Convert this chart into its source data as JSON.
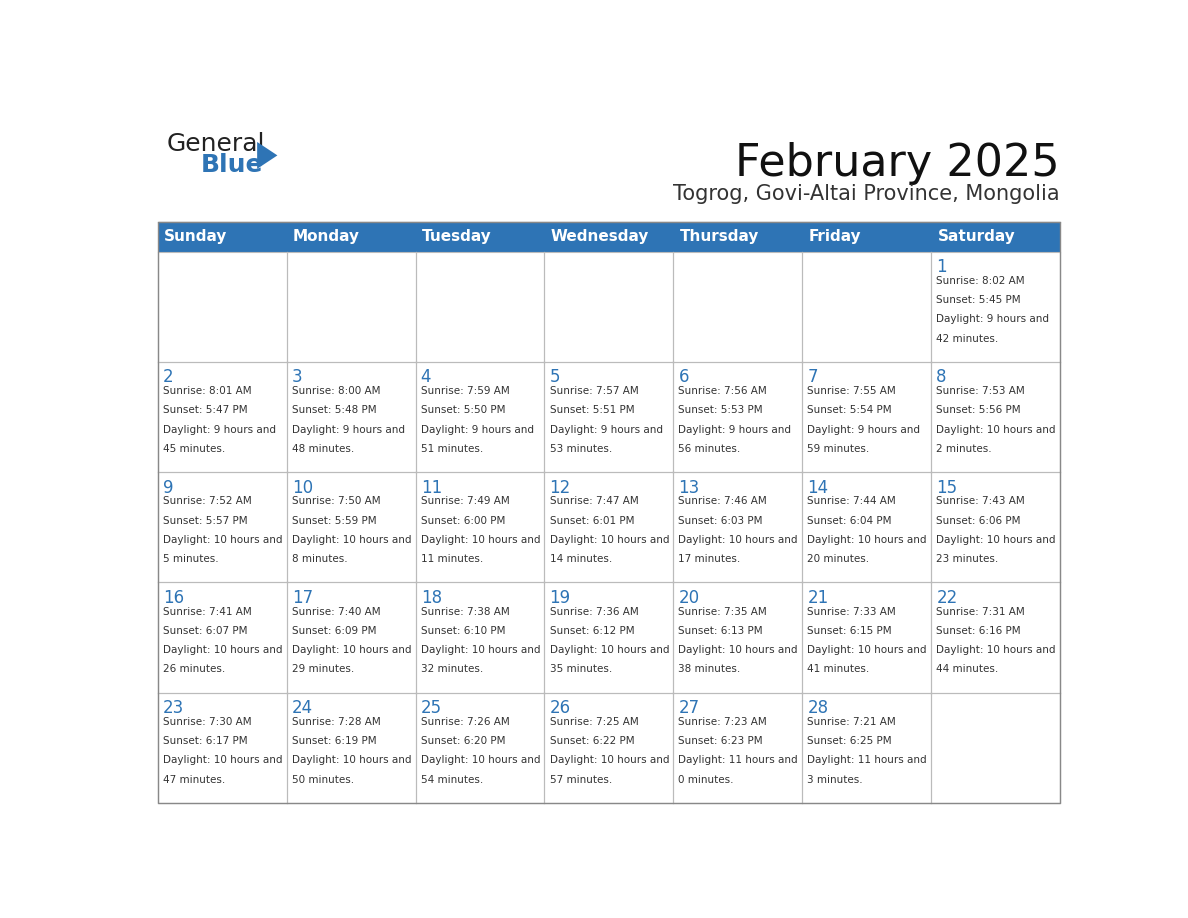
{
  "title": "February 2025",
  "subtitle": "Togrog, Govi-Altai Province, Mongolia",
  "header_bg": "#2E74B5",
  "header_text": "#FFFFFF",
  "cell_bg": "#FFFFFF",
  "cell_border": "#CCCCCC",
  "day_num_color": "#2E74B5",
  "cell_text_color": "#333333",
  "days_of_week": [
    "Sunday",
    "Monday",
    "Tuesday",
    "Wednesday",
    "Thursday",
    "Friday",
    "Saturday"
  ],
  "calendar": [
    [
      null,
      null,
      null,
      null,
      null,
      null,
      {
        "day": 1,
        "sunrise": "8:02 AM",
        "sunset": "5:45 PM",
        "daylight": "9 hours and 42 minutes."
      }
    ],
    [
      {
        "day": 2,
        "sunrise": "8:01 AM",
        "sunset": "5:47 PM",
        "daylight": "9 hours and 45 minutes."
      },
      {
        "day": 3,
        "sunrise": "8:00 AM",
        "sunset": "5:48 PM",
        "daylight": "9 hours and 48 minutes."
      },
      {
        "day": 4,
        "sunrise": "7:59 AM",
        "sunset": "5:50 PM",
        "daylight": "9 hours and 51 minutes."
      },
      {
        "day": 5,
        "sunrise": "7:57 AM",
        "sunset": "5:51 PM",
        "daylight": "9 hours and 53 minutes."
      },
      {
        "day": 6,
        "sunrise": "7:56 AM",
        "sunset": "5:53 PM",
        "daylight": "9 hours and 56 minutes."
      },
      {
        "day": 7,
        "sunrise": "7:55 AM",
        "sunset": "5:54 PM",
        "daylight": "9 hours and 59 minutes."
      },
      {
        "day": 8,
        "sunrise": "7:53 AM",
        "sunset": "5:56 PM",
        "daylight": "10 hours and 2 minutes."
      }
    ],
    [
      {
        "day": 9,
        "sunrise": "7:52 AM",
        "sunset": "5:57 PM",
        "daylight": "10 hours and 5 minutes."
      },
      {
        "day": 10,
        "sunrise": "7:50 AM",
        "sunset": "5:59 PM",
        "daylight": "10 hours and 8 minutes."
      },
      {
        "day": 11,
        "sunrise": "7:49 AM",
        "sunset": "6:00 PM",
        "daylight": "10 hours and 11 minutes."
      },
      {
        "day": 12,
        "sunrise": "7:47 AM",
        "sunset": "6:01 PM",
        "daylight": "10 hours and 14 minutes."
      },
      {
        "day": 13,
        "sunrise": "7:46 AM",
        "sunset": "6:03 PM",
        "daylight": "10 hours and 17 minutes."
      },
      {
        "day": 14,
        "sunrise": "7:44 AM",
        "sunset": "6:04 PM",
        "daylight": "10 hours and 20 minutes."
      },
      {
        "day": 15,
        "sunrise": "7:43 AM",
        "sunset": "6:06 PM",
        "daylight": "10 hours and 23 minutes."
      }
    ],
    [
      {
        "day": 16,
        "sunrise": "7:41 AM",
        "sunset": "6:07 PM",
        "daylight": "10 hours and 26 minutes."
      },
      {
        "day": 17,
        "sunrise": "7:40 AM",
        "sunset": "6:09 PM",
        "daylight": "10 hours and 29 minutes."
      },
      {
        "day": 18,
        "sunrise": "7:38 AM",
        "sunset": "6:10 PM",
        "daylight": "10 hours and 32 minutes."
      },
      {
        "day": 19,
        "sunrise": "7:36 AM",
        "sunset": "6:12 PM",
        "daylight": "10 hours and 35 minutes."
      },
      {
        "day": 20,
        "sunrise": "7:35 AM",
        "sunset": "6:13 PM",
        "daylight": "10 hours and 38 minutes."
      },
      {
        "day": 21,
        "sunrise": "7:33 AM",
        "sunset": "6:15 PM",
        "daylight": "10 hours and 41 minutes."
      },
      {
        "day": 22,
        "sunrise": "7:31 AM",
        "sunset": "6:16 PM",
        "daylight": "10 hours and 44 minutes."
      }
    ],
    [
      {
        "day": 23,
        "sunrise": "7:30 AM",
        "sunset": "6:17 PM",
        "daylight": "10 hours and 47 minutes."
      },
      {
        "day": 24,
        "sunrise": "7:28 AM",
        "sunset": "6:19 PM",
        "daylight": "10 hours and 50 minutes."
      },
      {
        "day": 25,
        "sunrise": "7:26 AM",
        "sunset": "6:20 PM",
        "daylight": "10 hours and 54 minutes."
      },
      {
        "day": 26,
        "sunrise": "7:25 AM",
        "sunset": "6:22 PM",
        "daylight": "10 hours and 57 minutes."
      },
      {
        "day": 27,
        "sunrise": "7:23 AM",
        "sunset": "6:23 PM",
        "daylight": "11 hours and 0 minutes."
      },
      {
        "day": 28,
        "sunrise": "7:21 AM",
        "sunset": "6:25 PM",
        "daylight": "11 hours and 3 minutes."
      },
      null
    ]
  ],
  "logo_text_general": "General",
  "logo_text_blue": "Blue",
  "logo_triangle_color": "#2E74B5"
}
